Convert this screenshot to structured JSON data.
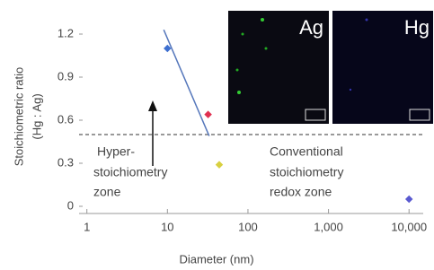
{
  "chart_data": {
    "type": "scatter",
    "xlabel": "Diameter (nm)",
    "ylabel": [
      "Stoichiometric ratio",
      "(Hg : Ag)"
    ],
    "log_x": true,
    "xlim": [
      0.8,
      15000
    ],
    "ylim": [
      -0.05,
      1.25
    ],
    "xticks": [
      1,
      10,
      100,
      {
        "value": 1000,
        "label": "1,000"
      },
      {
        "value": 10000,
        "label": "10,000"
      }
    ],
    "yticks": [
      0,
      0.3,
      0.6,
      0.9,
      1.2
    ],
    "points": {
      "x": [
        10,
        32,
        44,
        10000
      ],
      "y": [
        1.1,
        0.64,
        0.29,
        0.05
      ],
      "colors": [
        "#3d6fd0",
        "#e03050",
        "#d8d040",
        "#5a5ad0"
      ]
    },
    "trend_line": {
      "x": [
        9,
        33
      ],
      "y": [
        1.23,
        0.49
      ],
      "color": "#5577bb"
    },
    "threshold": 0.5,
    "annotations": [
      {
        "lines": [
          "Hyper-",
          "stoichiometry",
          "zone"
        ]
      },
      {
        "lines": [
          "Conventional",
          "stoichiometry",
          "redox zone"
        ]
      }
    ],
    "insets": [
      "Ag",
      "Hg"
    ]
  }
}
